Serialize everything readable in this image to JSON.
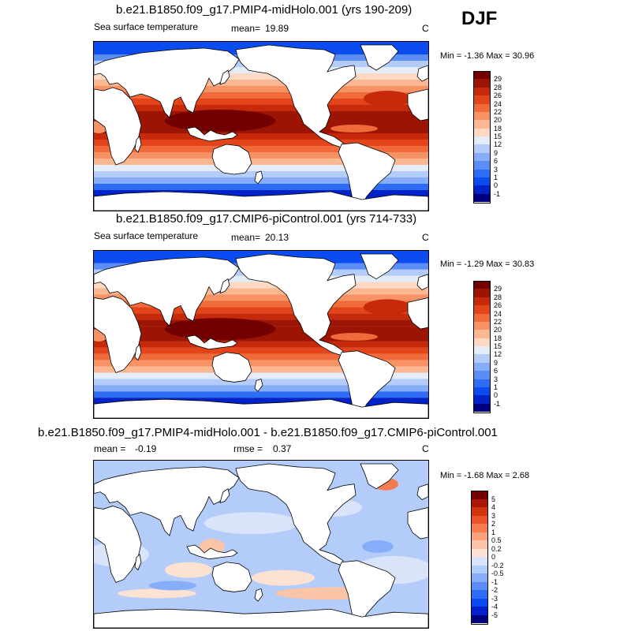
{
  "season": "DJF",
  "colors": {
    "sst": [
      "#00007f",
      "#0022c8",
      "#0a4cf0",
      "#2d6cf4",
      "#5a8ef6",
      "#86aef8",
      "#b3ccfa",
      "#e4ecf8",
      "#fdd9c4",
      "#fbb792",
      "#f79264",
      "#f06a3a",
      "#e3441a",
      "#c72a0a",
      "#9c1404",
      "#720000"
    ],
    "diff": [
      "#00007f",
      "#0022c8",
      "#0a4cf0",
      "#2d6cf4",
      "#5a8ef6",
      "#86aef8",
      "#b3ccfa",
      "#d9e4fa",
      "#fde2d2",
      "#fbc4a6",
      "#f9a07c",
      "#f47a50",
      "#ea5228",
      "#d23410",
      "#a81804",
      "#720000"
    ],
    "continent": "#ffffff",
    "coast": "#000000"
  },
  "panels": [
    {
      "title": "b.e21.B1850.f09_g17.PMIP4-midHolo.001 (yrs 190-209)",
      "variable": "Sea surface temperature",
      "mean_label": "mean=",
      "mean_value": "19.89",
      "units": "C",
      "minmax": "Min =  -1.36 Max =  30.96",
      "levels": [
        "29",
        "28",
        "26",
        "24",
        "22",
        "20",
        "18",
        "15",
        "12",
        "9",
        "6",
        "3",
        "1",
        "0",
        "-1"
      ],
      "field": "sst"
    },
    {
      "title": "b.e21.B1850.f09_g17.CMIP6-piControl.001 (yrs 714-733)",
      "variable": "Sea surface temperature",
      "mean_label": "mean=",
      "mean_value": "20.13",
      "units": "C",
      "minmax": "Min =  -1.29 Max =  30.83",
      "levels": [
        "29",
        "28",
        "26",
        "24",
        "22",
        "20",
        "18",
        "15",
        "12",
        "9",
        "6",
        "3",
        "1",
        "0",
        "-1"
      ],
      "field": "sst"
    },
    {
      "title": "b.e21.B1850.f09_g17.PMIP4-midHolo.001 - b.e21.B1850.f09_g17.CMIP6-piControl.001",
      "mean_label": "mean =",
      "mean_value": "-0.19",
      "rmse_label": "rmse =",
      "rmse_value": "0.37",
      "units": "C",
      "minmax": "Min =  -1.68 Max =   2.68",
      "levels": [
        "5",
        "4",
        "3",
        "2",
        "1",
        "0.5",
        "0.2",
        "0",
        "-0.2",
        "-0.5",
        "-1",
        "-2",
        "-3",
        "-4",
        "-5"
      ],
      "field": "diff"
    }
  ]
}
